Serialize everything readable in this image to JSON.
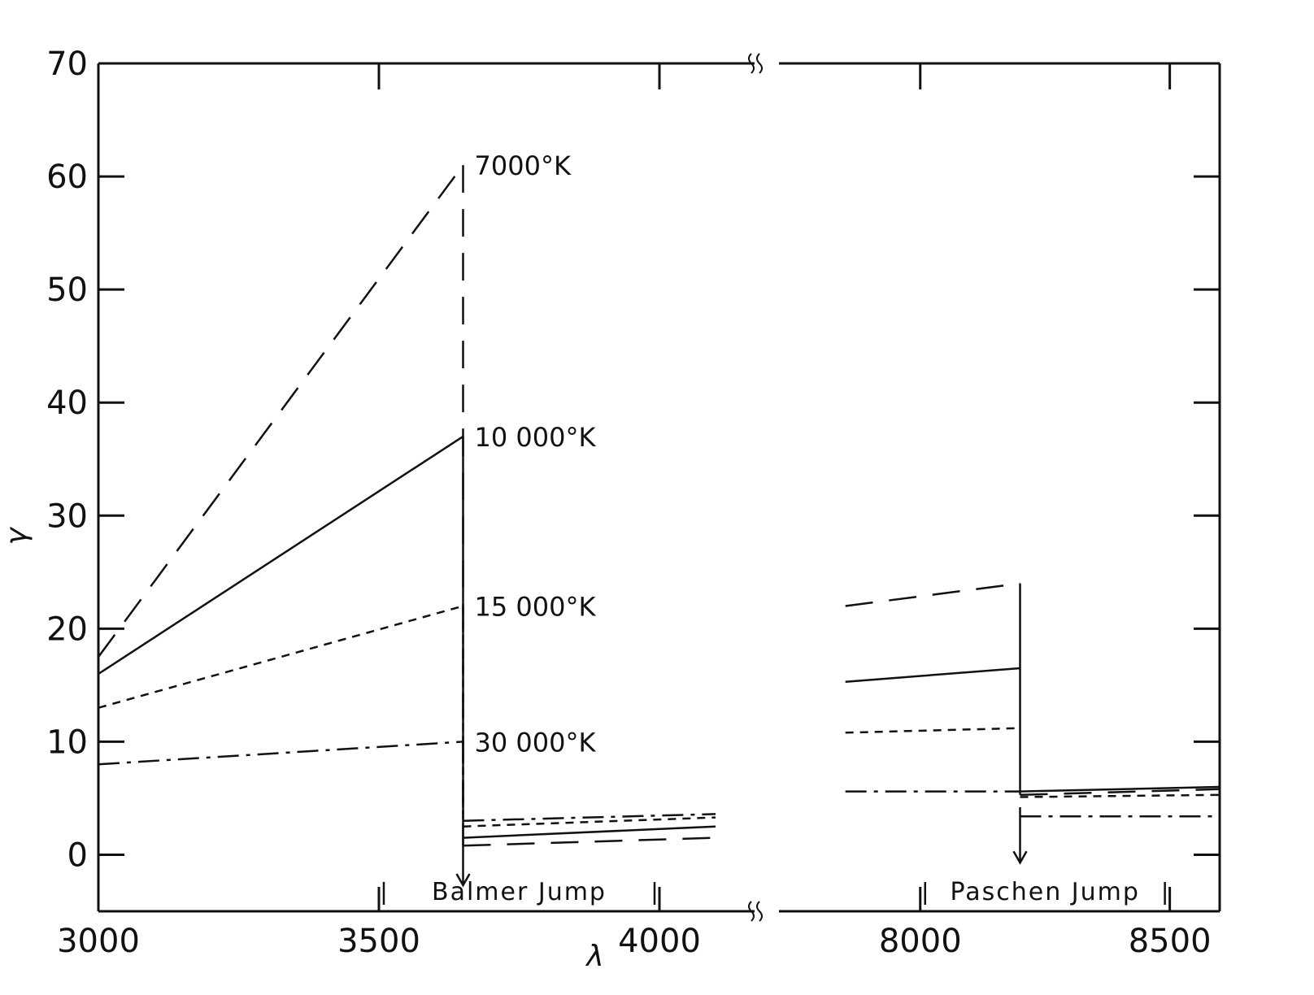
{
  "chart_data": {
    "type": "line",
    "xlabel": "λ",
    "ylabel": "γ",
    "ylim": [
      -5,
      70
    ],
    "broken_x_axis": true,
    "x_panels": [
      {
        "xlim": [
          3000,
          4100
        ],
        "ticks": [
          3000,
          3500,
          4000
        ],
        "tick_labels": [
          "3000",
          "3500",
          "4000"
        ]
      },
      {
        "xlim": [
          7800,
          8600
        ],
        "ticks": [
          8000,
          8500
        ],
        "tick_labels": [
          "8000",
          "8500"
        ]
      }
    ],
    "yticks": [
      0,
      10,
      20,
      30,
      40,
      50,
      60,
      70
    ],
    "ytick_labels": [
      "0",
      "10",
      "20",
      "30",
      "40",
      "50",
      "60",
      "70"
    ],
    "grid": false,
    "series": [
      {
        "name": "7000°K",
        "label": "7000°K",
        "style": "long-dash",
        "segments": [
          {
            "x": [
              3000,
              3650
            ],
            "y": [
              17.5,
              61.0
            ]
          },
          {
            "x": [
              3650,
              4100
            ],
            "y": [
              0.8,
              1.5
            ]
          },
          {
            "x": [
              7850,
              8200
            ],
            "y": [
              22.0,
              24.0
            ]
          },
          {
            "x": [
              8200,
              8600
            ],
            "y": [
              5.3,
              5.8
            ]
          }
        ]
      },
      {
        "name": "10 000°K",
        "label": "10 000°K",
        "style": "solid",
        "segments": [
          {
            "x": [
              3000,
              3650
            ],
            "y": [
              16.0,
              37.0
            ]
          },
          {
            "x": [
              3650,
              4100
            ],
            "y": [
              1.5,
              2.5
            ]
          },
          {
            "x": [
              7850,
              8200
            ],
            "y": [
              15.3,
              16.5
            ]
          },
          {
            "x": [
              8200,
              8600
            ],
            "y": [
              5.6,
              6.0
            ]
          }
        ]
      },
      {
        "name": "15 000°K",
        "label": "15 000°K",
        "style": "short-dash",
        "segments": [
          {
            "x": [
              3000,
              3650
            ],
            "y": [
              13.0,
              22.0
            ]
          },
          {
            "x": [
              3650,
              4100
            ],
            "y": [
              2.5,
              3.3
            ]
          },
          {
            "x": [
              7850,
              8200
            ],
            "y": [
              10.8,
              11.2
            ]
          },
          {
            "x": [
              8200,
              8600
            ],
            "y": [
              5.1,
              5.3
            ]
          }
        ]
      },
      {
        "name": "30 000°K",
        "label": "30 000°K",
        "style": "dash-dot",
        "segments": [
          {
            "x": [
              3000,
              3650
            ],
            "y": [
              8.0,
              10.0
            ]
          },
          {
            "x": [
              3650,
              4100
            ],
            "y": [
              3.0,
              3.6
            ]
          },
          {
            "x": [
              7850,
              8200
            ],
            "y": [
              5.6,
              5.6
            ]
          },
          {
            "x": [
              8200,
              8600
            ],
            "y": [
              3.4,
              3.4
            ]
          }
        ]
      }
    ],
    "jumps": [
      {
        "name": "Balmer Jump",
        "label": "Balmer Jump",
        "x": 3650,
        "range": [
          3500,
          4000
        ]
      },
      {
        "name": "Paschen Jump",
        "label": "Paschen Jump",
        "x": 8200,
        "range": [
          8000,
          8500
        ]
      }
    ],
    "colors": {
      "ink": "#111111",
      "background": "#ffffff"
    }
  }
}
